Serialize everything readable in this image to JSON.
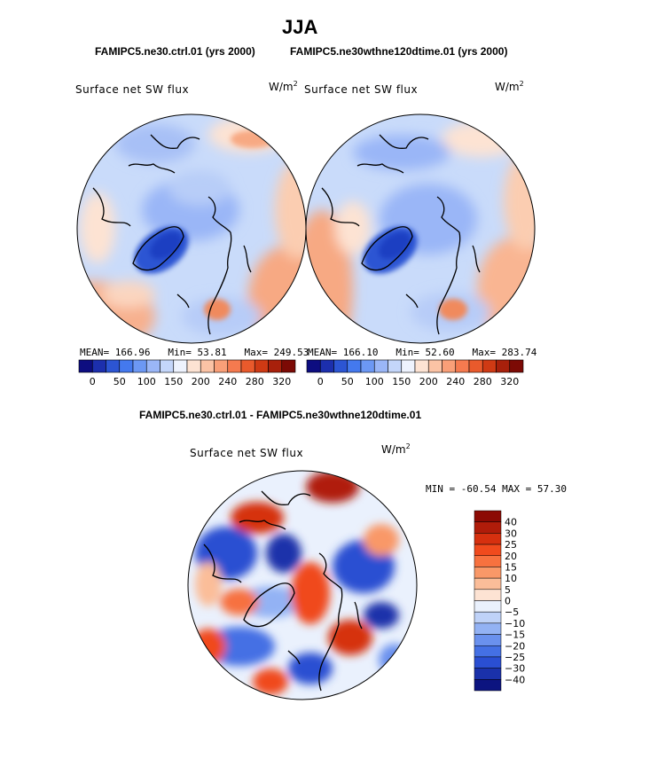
{
  "header": {
    "season": "JJA",
    "subtitle_left": "FAMIPC5.ne30.ctrl.01 (yrs 2000)",
    "subtitle_right": "FAMIPC5.ne30wthne120dtime.01 (yrs 2000)",
    "diff_title": "FAMIPC5.ne30.ctrl.01 - FAMIPC5.ne30wthne120dtime.01"
  },
  "chart_data": [
    {
      "type": "heatmap",
      "projection": "north-polar-stereographic",
      "variable": "Surface net SW flux",
      "units_base": "W/m",
      "units_exp": "2",
      "stats": {
        "mean_label": "MEAN=",
        "mean": "166.96",
        "min_label": "Min=",
        "min": "53.81",
        "max_label": "Max=",
        "max": "249.53"
      },
      "colorbar_ticks": [
        "0",
        "50",
        "100",
        "150",
        "200",
        "240",
        "280",
        "320"
      ],
      "colorbar_colors": [
        "#0d0d80",
        "#1c2fad",
        "#2c55d3",
        "#4479ee",
        "#6c98f4",
        "#9ab6f7",
        "#c4d6fa",
        "#eef3fe",
        "#fde3d3",
        "#fbc3a5",
        "#f99f78",
        "#f57a4f",
        "#e95a2c",
        "#cf3a14",
        "#a8200b",
        "#7c0a05"
      ]
    },
    {
      "type": "heatmap",
      "projection": "north-polar-stereographic",
      "variable": "Surface net SW flux",
      "units_base": "W/m",
      "units_exp": "2",
      "stats": {
        "mean_label": "MEAN=",
        "mean": "166.10",
        "min_label": "Min=",
        "min": "52.60",
        "max_label": "Max=",
        "max": "283.74"
      },
      "colorbar_ticks": [
        "0",
        "50",
        "100",
        "150",
        "200",
        "240",
        "280",
        "320"
      ],
      "colorbar_colors": [
        "#0d0d80",
        "#1c2fad",
        "#2c55d3",
        "#4479ee",
        "#6c98f4",
        "#9ab6f7",
        "#c4d6fa",
        "#eef3fe",
        "#fde3d3",
        "#fbc3a5",
        "#f99f78",
        "#f57a4f",
        "#e95a2c",
        "#cf3a14",
        "#a8200b",
        "#7c0a05"
      ]
    },
    {
      "type": "heatmap",
      "projection": "north-polar-stereographic",
      "variable": "Surface net SW flux",
      "units_base": "W/m",
      "units_exp": "2",
      "stats": {
        "min_label": "MIN =",
        "min": "-60.54",
        "max_label": "MAX =",
        "max": "57.30"
      },
      "colorbar_ticks": [
        "40",
        "30",
        "25",
        "20",
        "15",
        "10",
        "5",
        "0",
        "−5",
        "−10",
        "−15",
        "−20",
        "−25",
        "−30",
        "−40"
      ],
      "colorbar_colors": [
        "#8c0a04",
        "#b01c0a",
        "#d6300f",
        "#f04a1d",
        "#f7713f",
        "#f99868",
        "#fbbd99",
        "#fde3d3",
        "#eaf1fd",
        "#bfd2f8",
        "#93b2f4",
        "#6a91ee",
        "#4470e4",
        "#2a4fd2",
        "#1a31aa",
        "#0c1480"
      ]
    }
  ]
}
